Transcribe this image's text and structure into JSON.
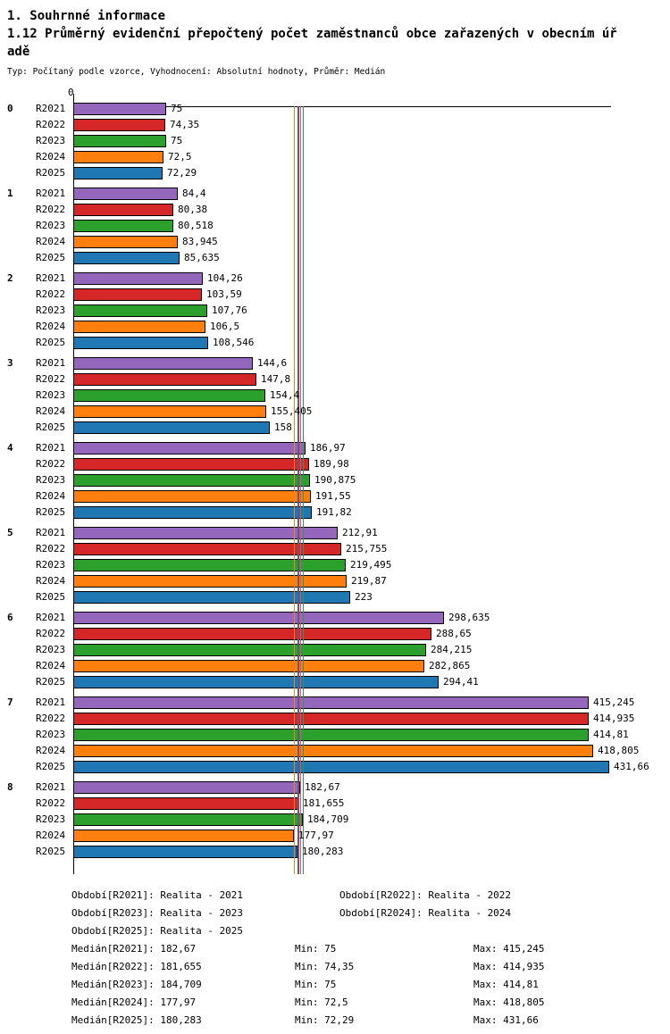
{
  "header": {
    "title": "1. Souhrnné informace",
    "subtitle_line1": "1.12 Průměrný evidenční přepočtený počet zaměstnanců obce zařazených v obecním úř",
    "subtitle_line2": "adě",
    "meta": "Typ: Počítaný podle vzorce, Vyhodnocení: Absolutní hodnoty, Průměr: Medián"
  },
  "chart_data": {
    "type": "bar",
    "orientation": "horizontal",
    "title": "1.12 Průměrný evidenční přepočtený počet zaměstnanců obce zařazených v obecním úřadě",
    "subtitle": "Typ: Počítaný podle vzorce, Vyhodnocení: Absolutní hodnoty, Průměr: Medián",
    "x_origin_label": "0",
    "xlim": [
      0,
      432
    ],
    "grid": false,
    "legend_position": "bottom",
    "series": [
      {
        "name": "R2021",
        "label": "Realita - 2021",
        "color": "#9467bd"
      },
      {
        "name": "R2022",
        "label": "Realita - 2022",
        "color": "#d62728"
      },
      {
        "name": "R2023",
        "label": "Realita - 2023",
        "color": "#2ca02c"
      },
      {
        "name": "R2024",
        "label": "Realita - 2024",
        "color": "#ff7f0e"
      },
      {
        "name": "R2025",
        "label": "Realita - 2025",
        "color": "#1f77b4"
      }
    ],
    "groups": [
      {
        "label": "0",
        "values": [
          75,
          74.35,
          75,
          72.5,
          72.29
        ],
        "display": [
          "75",
          "74,35",
          "75",
          "72,5",
          "72,29"
        ]
      },
      {
        "label": "1",
        "values": [
          84.4,
          80.38,
          80.518,
          83.945,
          85.635
        ],
        "display": [
          "84,4",
          "80,38",
          "80,518",
          "83,945",
          "85,635"
        ]
      },
      {
        "label": "2",
        "values": [
          104.26,
          103.59,
          107.76,
          106.5,
          108.546
        ],
        "display": [
          "104,26",
          "103,59",
          "107,76",
          "106,5",
          "108,546"
        ]
      },
      {
        "label": "3",
        "values": [
          144.6,
          147.8,
          154.4,
          155.405,
          158
        ],
        "display": [
          "144,6",
          "147,8",
          "154,4",
          "155,405",
          "158"
        ]
      },
      {
        "label": "4",
        "values": [
          186.97,
          189.98,
          190.875,
          191.55,
          191.82
        ],
        "display": [
          "186,97",
          "189,98",
          "190,875",
          "191,55",
          "191,82"
        ]
      },
      {
        "label": "5",
        "values": [
          212.91,
          215.755,
          219.495,
          219.87,
          223
        ],
        "display": [
          "212,91",
          "215,755",
          "219,495",
          "219,87",
          "223"
        ]
      },
      {
        "label": "6",
        "values": [
          298.635,
          288.65,
          284.215,
          282.865,
          294.41
        ],
        "display": [
          "298,635",
          "288,65",
          "284,215",
          "282,865",
          "294,41"
        ]
      },
      {
        "label": "7",
        "values": [
          415.245,
          414.935,
          414.81,
          418.805,
          431.66
        ],
        "display": [
          "415,245",
          "414,935",
          "414,81",
          "418,805",
          "431,66"
        ]
      },
      {
        "label": "8",
        "values": [
          182.67,
          181.655,
          184.709,
          177.97,
          180.283
        ],
        "display": [
          "182,67",
          "181,655",
          "184,709",
          "177,97",
          "180,283"
        ]
      }
    ],
    "median_lines": [
      {
        "series": "R2021",
        "value": 182.67,
        "color": "#9467bd"
      },
      {
        "series": "R2022",
        "value": 181.655,
        "color": "#d62728"
      },
      {
        "series": "R2023",
        "value": 184.709,
        "color": "#2ca02c"
      },
      {
        "series": "R2024",
        "value": 177.97,
        "color": "#ff7f0e"
      },
      {
        "series": "R2025",
        "value": 180.283,
        "color": "#1f77b4"
      }
    ]
  },
  "legend": {
    "periods": [
      "Období[R2021]: Realita - 2021",
      "Období[R2022]: Realita - 2022",
      "Období[R2023]: Realita - 2023",
      "Období[R2024]: Realita - 2024",
      "Období[R2025]: Realita - 2025"
    ],
    "stats": [
      {
        "median": "Medián[R2021]: 182,67",
        "min": "Min: 75",
        "max": "Max: 415,245"
      },
      {
        "median": "Medián[R2022]: 181,655",
        "min": "Min: 74,35",
        "max": "Max: 414,935"
      },
      {
        "median": "Medián[R2023]: 184,709",
        "min": "Min: 75",
        "max": "Max: 414,81"
      },
      {
        "median": "Medián[R2024]: 177,97",
        "min": "Min: 72,5",
        "max": "Max: 418,805"
      },
      {
        "median": "Medián[R2025]: 180,283",
        "min": "Min: 72,29",
        "max": "Max: 431,66"
      }
    ]
  }
}
